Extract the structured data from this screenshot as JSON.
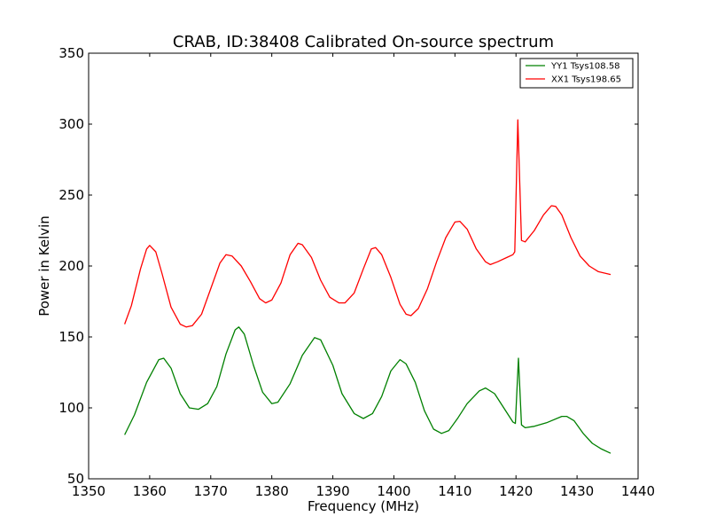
{
  "chart_data": {
    "type": "line",
    "title": "CRAB, ID:38408 Calibrated On-source spectrum",
    "xlabel": "Frequency (MHz)",
    "ylabel": "Power in Kelvin",
    "xlim": [
      1350,
      1440
    ],
    "ylim": [
      50,
      350
    ],
    "x_ticks": [
      1350,
      1360,
      1370,
      1380,
      1390,
      1400,
      1410,
      1420,
      1430,
      1440
    ],
    "y_ticks": [
      50,
      100,
      150,
      200,
      250,
      300,
      350
    ],
    "grid": false,
    "legend_position": "top-right",
    "series": [
      {
        "name": "YY1 Tsys108.58",
        "color": "#008000",
        "points": [
          [
            1355.9,
            81
          ],
          [
            1357.5,
            95
          ],
          [
            1359.5,
            118
          ],
          [
            1361.5,
            134
          ],
          [
            1362.3,
            135
          ],
          [
            1363.5,
            128
          ],
          [
            1365,
            110
          ],
          [
            1366.5,
            100
          ],
          [
            1368,
            99
          ],
          [
            1369.5,
            103
          ],
          [
            1371,
            115
          ],
          [
            1372.5,
            138
          ],
          [
            1374,
            155
          ],
          [
            1374.6,
            157
          ],
          [
            1375.5,
            152
          ],
          [
            1377,
            130
          ],
          [
            1378.5,
            111
          ],
          [
            1380,
            103
          ],
          [
            1381,
            104
          ],
          [
            1383,
            117
          ],
          [
            1385,
            137
          ],
          [
            1387,
            149.5
          ],
          [
            1388,
            148
          ],
          [
            1390,
            130
          ],
          [
            1391.5,
            110
          ],
          [
            1393.5,
            96
          ],
          [
            1395,
            92.5
          ],
          [
            1396.5,
            96
          ],
          [
            1398,
            108
          ],
          [
            1399.5,
            126
          ],
          [
            1401,
            134
          ],
          [
            1402,
            131
          ],
          [
            1403.5,
            118
          ],
          [
            1405,
            98
          ],
          [
            1406.5,
            85
          ],
          [
            1407.8,
            82
          ],
          [
            1409,
            84
          ],
          [
            1410.5,
            93
          ],
          [
            1412,
            103
          ],
          [
            1414,
            112
          ],
          [
            1415,
            114
          ],
          [
            1416.5,
            110
          ],
          [
            1418,
            100
          ],
          [
            1419.5,
            90
          ],
          [
            1419.9,
            89
          ],
          [
            1420.4,
            135
          ],
          [
            1420.9,
            88
          ],
          [
            1421.5,
            86
          ],
          [
            1423,
            87
          ],
          [
            1425,
            89.5
          ],
          [
            1427.5,
            94
          ],
          [
            1428.3,
            94
          ],
          [
            1429.5,
            91
          ],
          [
            1431,
            82
          ],
          [
            1432.5,
            75
          ],
          [
            1434,
            71
          ],
          [
            1435.5,
            68
          ]
        ]
      },
      {
        "name": "XX1 Tsys198.65",
        "color": "#ff0000",
        "points": [
          [
            1355.9,
            159
          ],
          [
            1357,
            172
          ],
          [
            1358.5,
            198
          ],
          [
            1359.5,
            212
          ],
          [
            1360,
            214.5
          ],
          [
            1361,
            210
          ],
          [
            1362,
            195
          ],
          [
            1363.5,
            171
          ],
          [
            1365,
            159
          ],
          [
            1366,
            157
          ],
          [
            1367,
            158
          ],
          [
            1368.5,
            166
          ],
          [
            1370,
            184
          ],
          [
            1371.5,
            202
          ],
          [
            1372.5,
            208
          ],
          [
            1373.5,
            207
          ],
          [
            1375,
            200
          ],
          [
            1376.5,
            189
          ],
          [
            1378,
            177
          ],
          [
            1379,
            174
          ],
          [
            1380,
            176
          ],
          [
            1381.5,
            188
          ],
          [
            1383,
            208
          ],
          [
            1384.3,
            216
          ],
          [
            1385,
            215
          ],
          [
            1386.5,
            206
          ],
          [
            1388,
            190
          ],
          [
            1389.5,
            178
          ],
          [
            1391,
            174
          ],
          [
            1392,
            174
          ],
          [
            1393.5,
            181
          ],
          [
            1395,
            198
          ],
          [
            1396.3,
            212
          ],
          [
            1397,
            213
          ],
          [
            1398,
            208
          ],
          [
            1399.5,
            192
          ],
          [
            1401,
            173
          ],
          [
            1402,
            166
          ],
          [
            1402.8,
            165
          ],
          [
            1404,
            170
          ],
          [
            1405.5,
            184
          ],
          [
            1407,
            203
          ],
          [
            1408.5,
            220
          ],
          [
            1410,
            231
          ],
          [
            1410.8,
            231.5
          ],
          [
            1412,
            226
          ],
          [
            1413.5,
            212
          ],
          [
            1415,
            203
          ],
          [
            1415.8,
            201
          ],
          [
            1417,
            203
          ],
          [
            1418.5,
            206
          ],
          [
            1419.5,
            208
          ],
          [
            1419.8,
            210
          ],
          [
            1420.3,
            303
          ],
          [
            1420.9,
            218
          ],
          [
            1421.5,
            217
          ],
          [
            1423,
            225
          ],
          [
            1424.5,
            236
          ],
          [
            1425.8,
            242.5
          ],
          [
            1426.5,
            242
          ],
          [
            1427.5,
            236
          ],
          [
            1429,
            220
          ],
          [
            1430.5,
            207
          ],
          [
            1432,
            200
          ],
          [
            1433.5,
            196
          ],
          [
            1435.5,
            194
          ]
        ]
      }
    ]
  }
}
